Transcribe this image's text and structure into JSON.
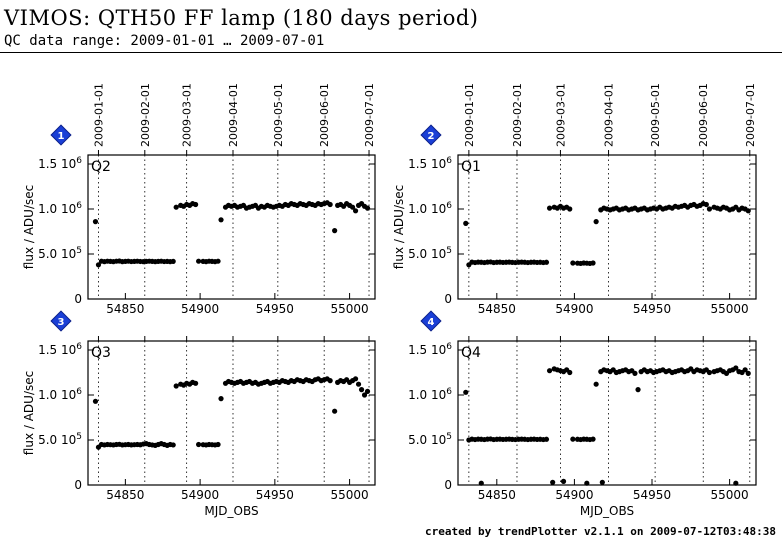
{
  "header": {
    "title": "VIMOS: QTH50 FF lamp (180 days period)",
    "subtitle": "QC data range: 2009-01-01 … 2009-07-01"
  },
  "footer": "created by trendPlotter v2.1.1 on 2009-07-12T03:48:38",
  "colors": {
    "marker": "#000000",
    "badge": "#1a3fd6",
    "background": "#ffffff"
  },
  "chart_data": [
    {
      "type": "scatter",
      "panel_number": "1",
      "label": "Q2",
      "ylabel": "flux / ADU/sec",
      "xlabel": "",
      "xlim": [
        54825,
        55017
      ],
      "ylim": [
        0,
        1600000.0
      ],
      "xticks": [
        "54850",
        "54900",
        "54950",
        "55000"
      ],
      "yticks": [
        "0",
        "5.0 10^5",
        "1.0 10^6",
        "1.5 10^6"
      ],
      "date_ticks": [
        "2009-01-01",
        "2009-02-01",
        "2009-03-01",
        "2009-04-01",
        "2009-05-01",
        "2009-06-01",
        "2009-07-01"
      ],
      "date_mjd": [
        54832,
        54863,
        54891,
        54922,
        54952,
        54983,
        55013
      ],
      "series": [
        {
          "x": [
            54830,
            54832,
            54834,
            54836,
            54838,
            54840,
            54842,
            54844,
            54846,
            54848,
            54850,
            54852,
            54854,
            54856,
            54858,
            54860,
            54862,
            54864,
            54866,
            54868,
            54870,
            54872,
            54874,
            54876,
            54878,
            54880,
            54882,
            54884,
            54887,
            54889,
            54891,
            54893,
            54895,
            54897,
            54899,
            54902,
            54904,
            54906,
            54908,
            54910,
            54912,
            54914,
            54917,
            54919,
            54921,
            54923,
            54925,
            54927,
            54929,
            54931,
            54933,
            54935,
            54937,
            54939,
            54941,
            54943,
            54945,
            54947,
            54949,
            54951,
            54953,
            54955,
            54957,
            54959,
            54961,
            54963,
            54965,
            54967,
            54969,
            54971,
            54973,
            54975,
            54977,
            54979,
            54981,
            54983,
            54985,
            54987,
            54990,
            54992,
            54994,
            54996,
            54998,
            55000,
            55002,
            55004,
            55006,
            55008,
            55010,
            55012
          ],
          "y": [
            860000,
            380000,
            420000,
            415000,
            420000,
            418000,
            415000,
            420000,
            422000,
            415000,
            418000,
            420000,
            416000,
            418000,
            420000,
            417000,
            415000,
            418000,
            420000,
            418000,
            415000,
            418000,
            420000,
            416000,
            418000,
            415000,
            418000,
            1020000,
            1040000,
            1030000,
            1050000,
            1040000,
            1060000,
            1050000,
            420000,
            418000,
            415000,
            420000,
            418000,
            415000,
            420000,
            880000,
            1020000,
            1040000,
            1030000,
            1040000,
            1020000,
            1030000,
            1040000,
            1010000,
            1020000,
            1030000,
            1040000,
            1010000,
            1030000,
            1020000,
            1040000,
            1030000,
            1020000,
            1030000,
            1040000,
            1030000,
            1050000,
            1040000,
            1060000,
            1050000,
            1040000,
            1060000,
            1050000,
            1040000,
            1060000,
            1050000,
            1040000,
            1060000,
            1050000,
            1060000,
            1070000,
            1050000,
            760000,
            1040000,
            1050000,
            1030000,
            1060000,
            1040000,
            1020000,
            980000,
            1040000,
            1060000,
            1030000,
            1010000
          ]
        }
      ]
    },
    {
      "type": "scatter",
      "panel_number": "2",
      "label": "Q1",
      "ylabel": "flux / ADU/sec",
      "xlabel": "",
      "xlim": [
        54825,
        55017
      ],
      "ylim": [
        0,
        1600000.0
      ],
      "xticks": [
        "54850",
        "54900",
        "54950",
        "55000"
      ],
      "yticks": [
        "0",
        "5.0 10^5",
        "1.0 10^6",
        "1.5 10^6"
      ],
      "date_ticks": [
        "2009-01-01",
        "2009-02-01",
        "2009-03-01",
        "2009-04-01",
        "2009-05-01",
        "2009-06-01",
        "2009-07-01"
      ],
      "date_mjd": [
        54832,
        54863,
        54891,
        54922,
        54952,
        54983,
        55013
      ],
      "series": [
        {
          "x": [
            54830,
            54832,
            54834,
            54836,
            54838,
            54840,
            54842,
            54844,
            54846,
            54848,
            54850,
            54852,
            54854,
            54856,
            54858,
            54860,
            54862,
            54864,
            54866,
            54868,
            54870,
            54872,
            54874,
            54876,
            54878,
            54880,
            54882,
            54884,
            54887,
            54889,
            54891,
            54893,
            54895,
            54897,
            54899,
            54902,
            54904,
            54906,
            54908,
            54910,
            54912,
            54914,
            54917,
            54919,
            54921,
            54923,
            54925,
            54927,
            54929,
            54931,
            54933,
            54935,
            54937,
            54939,
            54941,
            54943,
            54945,
            54947,
            54949,
            54951,
            54953,
            54955,
            54957,
            54959,
            54961,
            54963,
            54965,
            54967,
            54969,
            54971,
            54973,
            54975,
            54977,
            54979,
            54981,
            54983,
            54985,
            54987,
            54990,
            54992,
            54994,
            54996,
            54998,
            55000,
            55002,
            55004,
            55006,
            55008,
            55010,
            55012
          ],
          "y": [
            840000,
            380000,
            410000,
            405000,
            410000,
            408000,
            405000,
            410000,
            412000,
            405000,
            408000,
            410000,
            406000,
            408000,
            410000,
            407000,
            405000,
            408000,
            410000,
            408000,
            405000,
            408000,
            410000,
            406000,
            408000,
            405000,
            408000,
            1010000,
            1020000,
            1010000,
            1030000,
            1010000,
            1020000,
            1000000,
            400000,
            398000,
            395000,
            400000,
            398000,
            395000,
            400000,
            860000,
            990000,
            1010000,
            1000000,
            990000,
            1000000,
            1010000,
            990000,
            1000000,
            1010000,
            990000,
            1000000,
            1010000,
            990000,
            1000000,
            1010000,
            990000,
            1000000,
            1010000,
            1000000,
            1020000,
            1000000,
            1010000,
            1020000,
            1010000,
            1030000,
            1020000,
            1030000,
            1040000,
            1020000,
            1040000,
            1050000,
            1030000,
            1040000,
            1060000,
            1050000,
            1000000,
            1020000,
            1010000,
            1000000,
            1020000,
            1010000,
            990000,
            1000000,
            1020000,
            990000,
            1010000,
            1000000,
            980000
          ]
        }
      ]
    },
    {
      "type": "scatter",
      "panel_number": "3",
      "label": "Q3",
      "ylabel": "flux / ADU/sec",
      "xlabel": "MJD_OBS",
      "xlim": [
        54825,
        55017
      ],
      "ylim": [
        0,
        1600000.0
      ],
      "xticks": [
        "54850",
        "54900",
        "54950",
        "55000"
      ],
      "yticks": [
        "0",
        "5.0 10^5",
        "1.0 10^6",
        "1.5 10^6"
      ],
      "date_ticks": [
        "2009-01-01",
        "2009-02-01",
        "2009-03-01",
        "2009-04-01",
        "2009-05-01",
        "2009-06-01",
        "2009-07-01"
      ],
      "date_mjd": [
        54832,
        54863,
        54891,
        54922,
        54952,
        54983,
        55013
      ],
      "series": [
        {
          "x": [
            54830,
            54832,
            54834,
            54836,
            54838,
            54840,
            54842,
            54844,
            54846,
            54848,
            54850,
            54852,
            54854,
            54856,
            54858,
            54860,
            54862,
            54864,
            54866,
            54868,
            54870,
            54872,
            54874,
            54876,
            54878,
            54880,
            54882,
            54884,
            54887,
            54889,
            54891,
            54893,
            54895,
            54897,
            54899,
            54902,
            54904,
            54906,
            54908,
            54910,
            54912,
            54914,
            54917,
            54919,
            54921,
            54923,
            54925,
            54927,
            54929,
            54931,
            54933,
            54935,
            54937,
            54939,
            54941,
            54943,
            54945,
            54947,
            54949,
            54951,
            54953,
            54955,
            54957,
            54959,
            54961,
            54963,
            54965,
            54967,
            54969,
            54971,
            54973,
            54975,
            54977,
            54979,
            54981,
            54983,
            54985,
            54987,
            54990,
            54992,
            54994,
            54996,
            54998,
            55000,
            55002,
            55004,
            55006,
            55008,
            55010,
            55012
          ],
          "y": [
            930000,
            420000,
            450000,
            445000,
            450000,
            448000,
            445000,
            450000,
            452000,
            445000,
            448000,
            450000,
            446000,
            448000,
            450000,
            447000,
            455000,
            460000,
            450000,
            445000,
            440000,
            450000,
            460000,
            450000,
            440000,
            450000,
            445000,
            1100000,
            1120000,
            1110000,
            1130000,
            1120000,
            1140000,
            1130000,
            450000,
            448000,
            445000,
            450000,
            448000,
            445000,
            450000,
            960000,
            1130000,
            1150000,
            1140000,
            1130000,
            1140000,
            1150000,
            1130000,
            1140000,
            1150000,
            1130000,
            1140000,
            1120000,
            1130000,
            1140000,
            1150000,
            1130000,
            1140000,
            1150000,
            1140000,
            1160000,
            1150000,
            1140000,
            1160000,
            1150000,
            1170000,
            1160000,
            1150000,
            1170000,
            1160000,
            1150000,
            1170000,
            1180000,
            1160000,
            1170000,
            1180000,
            1160000,
            820000,
            1140000,
            1160000,
            1150000,
            1170000,
            1140000,
            1160000,
            1180000,
            1120000,
            1060000,
            1000000,
            1040000
          ]
        }
      ]
    },
    {
      "type": "scatter",
      "panel_number": "4",
      "label": "Q4",
      "ylabel": "",
      "xlabel": "MJD_OBS",
      "xlim": [
        54825,
        55017
      ],
      "ylim": [
        0,
        1600000.0
      ],
      "xticks": [
        "54850",
        "54900",
        "54950",
        "55000"
      ],
      "yticks": [
        "0",
        "5.0 10^5",
        "1.0 10^6",
        "1.5 10^6"
      ],
      "date_ticks": [
        "2009-01-01",
        "2009-02-01",
        "2009-03-01",
        "2009-04-01",
        "2009-05-01",
        "2009-06-01",
        "2009-07-01"
      ],
      "date_mjd": [
        54832,
        54863,
        54891,
        54922,
        54952,
        54983,
        55013
      ],
      "series": [
        {
          "x": [
            54830,
            54832,
            54834,
            54836,
            54838,
            54840,
            54842,
            54844,
            54846,
            54848,
            54850,
            54852,
            54854,
            54856,
            54858,
            54860,
            54862,
            54864,
            54866,
            54868,
            54870,
            54872,
            54874,
            54876,
            54878,
            54880,
            54882,
            54884,
            54887,
            54889,
            54891,
            54893,
            54895,
            54897,
            54899,
            54902,
            54904,
            54906,
            54908,
            54910,
            54912,
            54914,
            54917,
            54919,
            54921,
            54923,
            54925,
            54927,
            54929,
            54931,
            54933,
            54935,
            54937,
            54939,
            54941,
            54943,
            54945,
            54947,
            54949,
            54951,
            54953,
            54955,
            54957,
            54959,
            54961,
            54963,
            54965,
            54967,
            54969,
            54971,
            54973,
            54975,
            54977,
            54979,
            54981,
            54983,
            54985,
            54987,
            54990,
            54992,
            54994,
            54996,
            54998,
            55000,
            55002,
            55004,
            55006,
            55008,
            55010,
            55012,
            54840,
            54886,
            54893,
            54908,
            54918,
            55004
          ],
          "y": [
            1030000,
            500000,
            510000,
            505000,
            510000,
            508000,
            505000,
            510000,
            512000,
            505000,
            508000,
            510000,
            506000,
            508000,
            510000,
            507000,
            505000,
            508000,
            510000,
            508000,
            505000,
            508000,
            510000,
            506000,
            508000,
            505000,
            508000,
            1270000,
            1290000,
            1280000,
            1270000,
            1260000,
            1280000,
            1250000,
            510000,
            508000,
            505000,
            510000,
            508000,
            505000,
            510000,
            1120000,
            1260000,
            1280000,
            1270000,
            1260000,
            1280000,
            1250000,
            1260000,
            1270000,
            1280000,
            1260000,
            1270000,
            1240000,
            1060000,
            1260000,
            1280000,
            1260000,
            1270000,
            1250000,
            1260000,
            1270000,
            1280000,
            1260000,
            1270000,
            1250000,
            1260000,
            1270000,
            1280000,
            1260000,
            1270000,
            1290000,
            1260000,
            1280000,
            1270000,
            1260000,
            1280000,
            1250000,
            1260000,
            1270000,
            1280000,
            1260000,
            1240000,
            1270000,
            1280000,
            1300000,
            1260000,
            1250000,
            1280000,
            1240000,
            20000,
            30000,
            40000,
            20000,
            30000,
            20000
          ]
        }
      ]
    }
  ]
}
